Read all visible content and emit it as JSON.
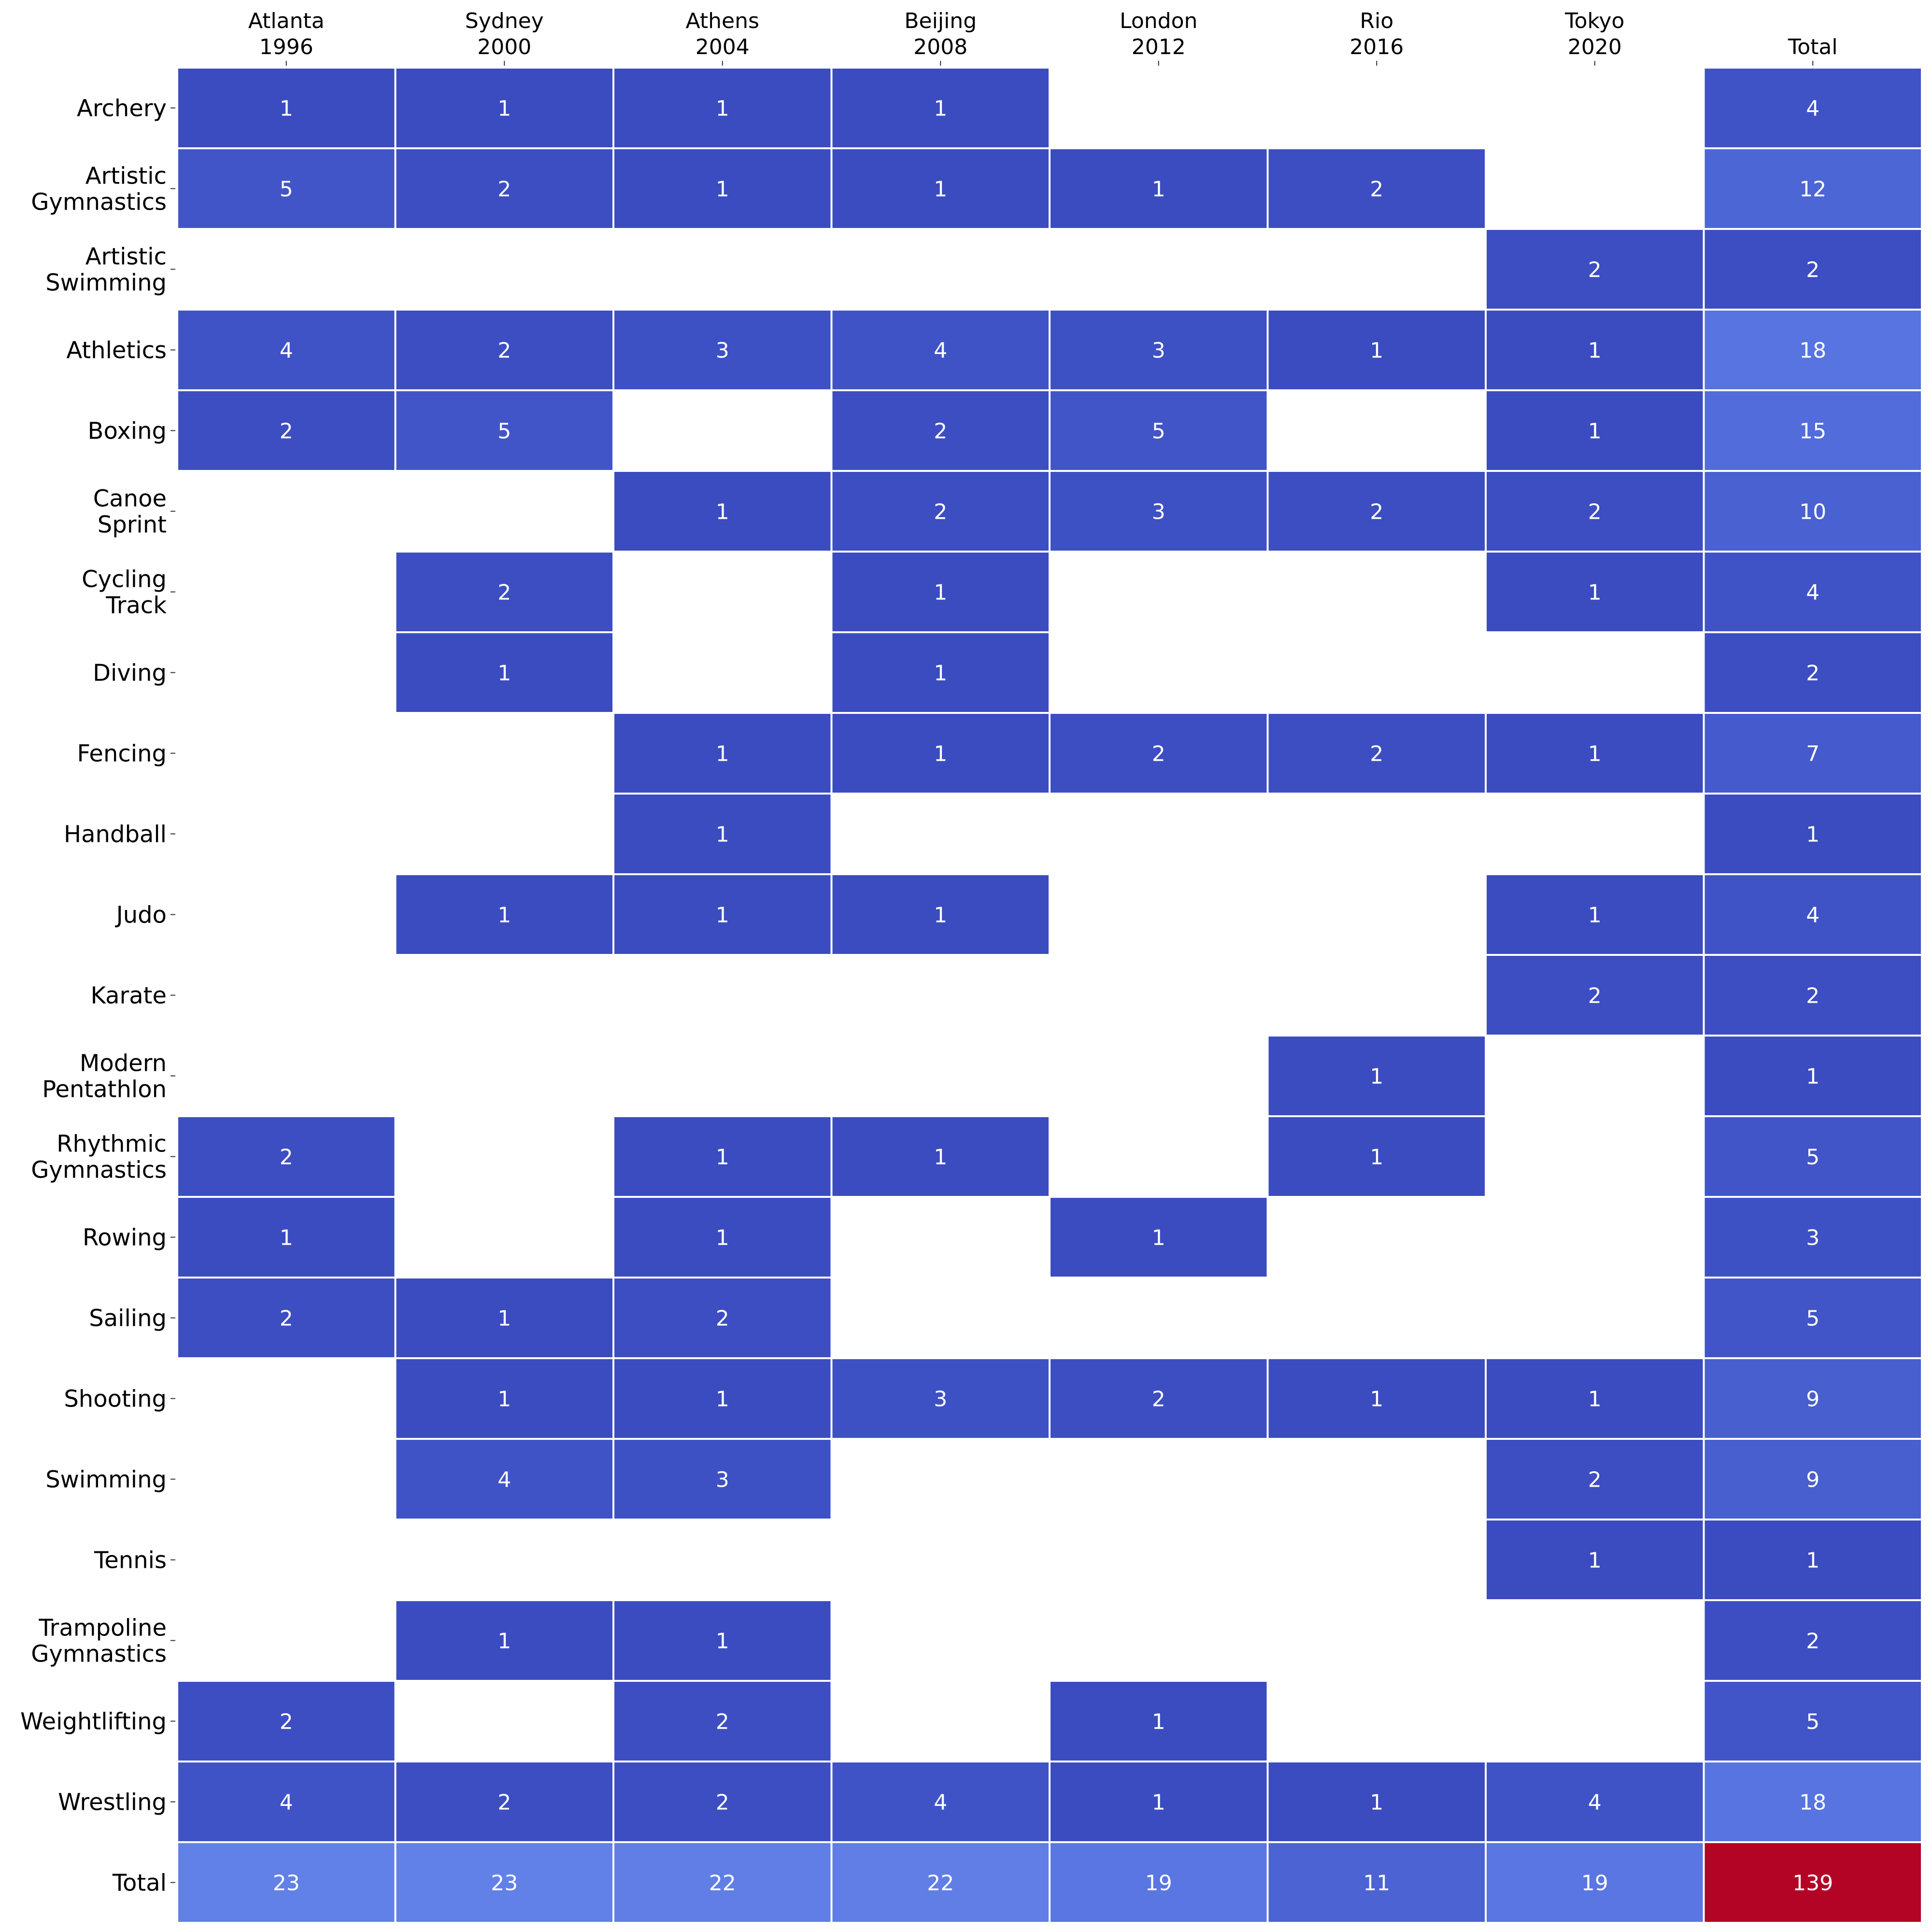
{
  "chart_data": {
    "type": "heatmap",
    "title": "",
    "xlabel": "",
    "ylabel": "",
    "columns": [
      [
        "Atlanta",
        "1996"
      ],
      [
        "Sydney",
        "2000"
      ],
      [
        "Athens",
        "2004"
      ],
      [
        "Beijing",
        "2008"
      ],
      [
        "London",
        "2012"
      ],
      [
        "Rio",
        "2016"
      ],
      [
        "Tokyo",
        "2020"
      ],
      [
        "Total"
      ]
    ],
    "rows": [
      [
        "Archery"
      ],
      [
        "Artistic",
        "Gymnastics"
      ],
      [
        "Artistic",
        "Swimming"
      ],
      [
        "Athletics"
      ],
      [
        "Boxing"
      ],
      [
        "Canoe",
        "Sprint"
      ],
      [
        "Cycling",
        "Track"
      ],
      [
        "Diving"
      ],
      [
        "Fencing"
      ],
      [
        "Handball"
      ],
      [
        "Judo"
      ],
      [
        "Karate"
      ],
      [
        "Modern",
        "Pentathlon"
      ],
      [
        "Rhythmic",
        "Gymnastics"
      ],
      [
        "Rowing"
      ],
      [
        "Sailing"
      ],
      [
        "Shooting"
      ],
      [
        "Swimming"
      ],
      [
        "Tennis"
      ],
      [
        "Trampoline",
        "Gymnastics"
      ],
      [
        "Weightlifting"
      ],
      [
        "Wrestling"
      ],
      [
        "Total"
      ]
    ],
    "values": [
      [
        1,
        1,
        1,
        1,
        null,
        null,
        null,
        4
      ],
      [
        5,
        2,
        1,
        1,
        1,
        2,
        null,
        12
      ],
      [
        null,
        null,
        null,
        null,
        null,
        null,
        2,
        2
      ],
      [
        4,
        2,
        3,
        4,
        3,
        1,
        1,
        18
      ],
      [
        2,
        5,
        null,
        2,
        5,
        null,
        1,
        15
      ],
      [
        null,
        null,
        1,
        2,
        3,
        2,
        2,
        10
      ],
      [
        null,
        2,
        null,
        1,
        null,
        null,
        1,
        4
      ],
      [
        null,
        1,
        null,
        1,
        null,
        null,
        null,
        2
      ],
      [
        null,
        null,
        1,
        1,
        2,
        2,
        1,
        7
      ],
      [
        null,
        null,
        1,
        null,
        null,
        null,
        null,
        1
      ],
      [
        null,
        1,
        1,
        1,
        null,
        null,
        1,
        4
      ],
      [
        null,
        null,
        null,
        null,
        null,
        null,
        2,
        2
      ],
      [
        null,
        null,
        null,
        null,
        null,
        1,
        null,
        1
      ],
      [
        2,
        null,
        1,
        1,
        null,
        1,
        null,
        5
      ],
      [
        1,
        null,
        1,
        null,
        1,
        null,
        null,
        3
      ],
      [
        2,
        1,
        2,
        null,
        null,
        null,
        null,
        5
      ],
      [
        null,
        1,
        1,
        3,
        2,
        1,
        1,
        9
      ],
      [
        null,
        4,
        3,
        null,
        null,
        null,
        2,
        9
      ],
      [
        null,
        null,
        null,
        null,
        null,
        null,
        1,
        1
      ],
      [
        null,
        1,
        1,
        null,
        null,
        null,
        null,
        2
      ],
      [
        2,
        null,
        2,
        null,
        1,
        null,
        null,
        5
      ],
      [
        4,
        2,
        2,
        4,
        1,
        1,
        4,
        18
      ],
      [
        23,
        23,
        22,
        22,
        19,
        11,
        19,
        139
      ]
    ],
    "colormap": "coolwarm",
    "color_range": [
      1,
      139
    ],
    "empty_cell_color": "#ffffff",
    "cell_border_color": "#ffffff",
    "annotation_color": "#ffffff",
    "x_tick_position": "top",
    "grid": false,
    "legend": "none"
  }
}
